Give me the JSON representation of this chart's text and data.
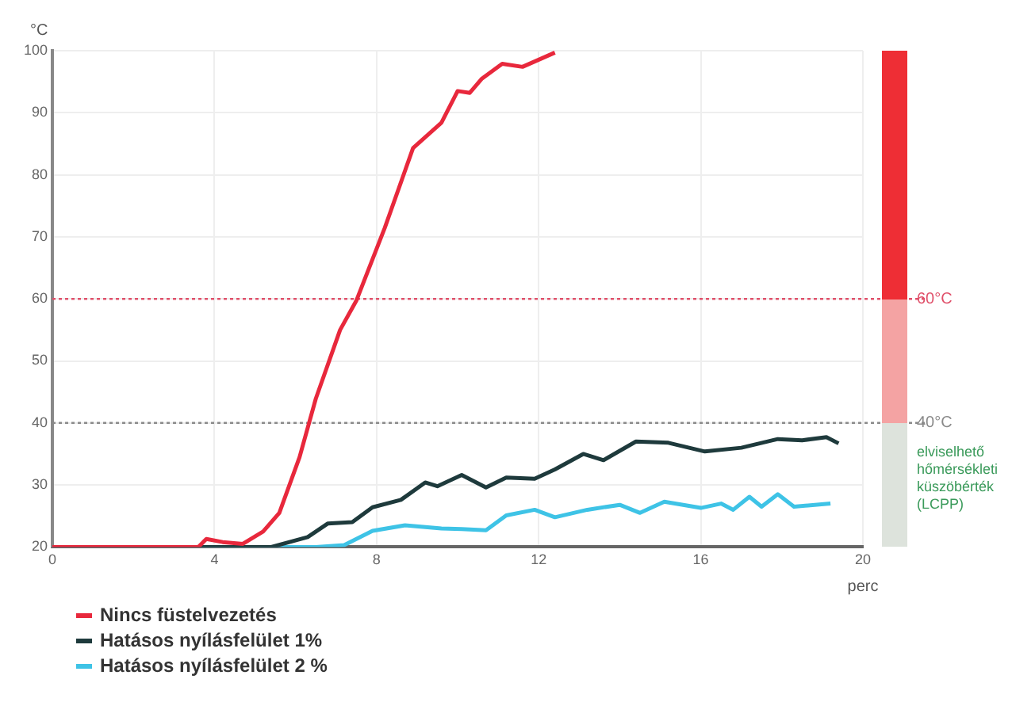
{
  "chart_data": {
    "type": "line",
    "xlabel": "perc",
    "ylabel": "°C",
    "xlim": [
      0,
      20
    ],
    "xticks": [
      0,
      4,
      8,
      12,
      16,
      20
    ],
    "ylim": [
      20,
      100
    ],
    "yticks": [
      20,
      30,
      40,
      50,
      60,
      70,
      80,
      90,
      100
    ],
    "grid": true,
    "legend": "bottom left",
    "marker": "none",
    "line_style": "solid",
    "series": [
      {
        "name": "Nincs füstelvezetés",
        "color": "#e8283c",
        "x": [
          0,
          3.6,
          3.8,
          4.2,
          4.7,
          5.2,
          5.6,
          6.1,
          6.5,
          7.1,
          7.5,
          8.2,
          8.9,
          9.6,
          10,
          10.3,
          10.6,
          11.1,
          11.6,
          12.4
        ],
        "values": [
          20,
          20,
          21.3,
          20.8,
          20.5,
          22.5,
          25.5,
          34.5,
          43.9,
          55,
          59.7,
          71.4,
          84.3,
          88.4,
          93.5,
          93.2,
          95.5,
          97.9,
          97.4,
          99.7
        ]
      },
      {
        "name": "Hatásos nyílásfelület 1%",
        "color": "#1e3a3c",
        "x": [
          0,
          5.4,
          6.3,
          6.8,
          7.4,
          7.9,
          8.6,
          9.2,
          9.5,
          10.1,
          10.7,
          11.2,
          11.9,
          12.4,
          13.1,
          13.6,
          14.4,
          15.2,
          16.1,
          17,
          17.9,
          18.5,
          19.1,
          19.4
        ],
        "values": [
          20,
          20,
          21.6,
          23.8,
          24,
          26.4,
          27.6,
          30.4,
          29.8,
          31.6,
          29.6,
          31.2,
          31,
          32.5,
          35,
          34,
          37,
          36.8,
          35.4,
          36,
          37.4,
          37.2,
          37.7,
          36.7
        ]
      },
      {
        "name": "Hatásos nyílásfelület 2 %",
        "color": "#3ec3e6",
        "x": [
          0,
          6.5,
          7.2,
          7.9,
          8.7,
          9.6,
          10.1,
          10.7,
          11.2,
          11.9,
          12.4,
          13.2,
          14,
          14.5,
          15.1,
          16,
          16.5,
          16.8,
          17.2,
          17.5,
          17.9,
          18.3,
          19.2
        ],
        "values": [
          20,
          20,
          20.3,
          22.6,
          23.5,
          23,
          22.9,
          22.7,
          25.1,
          26,
          24.8,
          26,
          26.8,
          25.5,
          27.3,
          26.3,
          27,
          26,
          28.1,
          26.5,
          28.5,
          26.5,
          27
        ]
      }
    ],
    "ref_lines": [
      {
        "axis": "y",
        "value": 60,
        "label": "60°C",
        "color": "#e0506a",
        "line_style": "dotted"
      },
      {
        "axis": "y",
        "value": 40,
        "label": "40°C",
        "color": "#8a8a8a",
        "line_style": "dotted"
      }
    ],
    "annotations": [
      "elviselhető hőmérsékleti küszöbérték (LCPP)"
    ]
  }
}
